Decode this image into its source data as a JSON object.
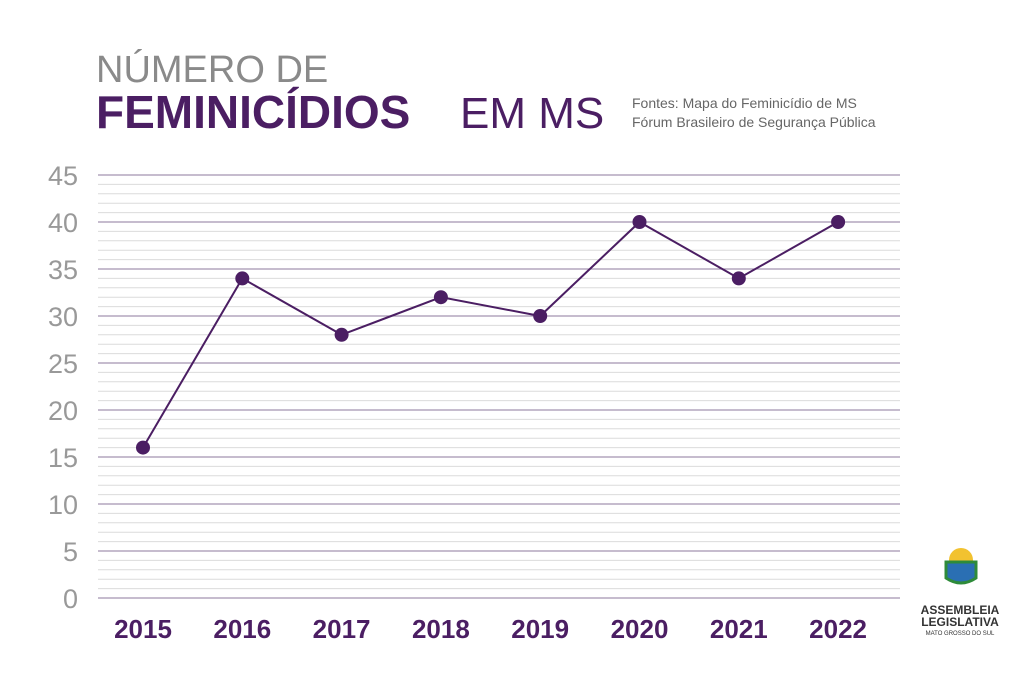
{
  "chart_data": {
    "type": "line",
    "title_line1": "NÚMERO DE",
    "title_bold": "FEMINICÍDIOS",
    "title_rest": "EM MS",
    "sources": [
      "Fontes: Mapa do Feminicídio de MS",
      "Fórum Brasileiro de Segurança Pública"
    ],
    "categories": [
      "2015",
      "2016",
      "2017",
      "2018",
      "2019",
      "2020",
      "2021",
      "2022"
    ],
    "values": [
      16,
      34,
      28,
      32,
      30,
      40,
      34,
      40
    ],
    "color": "#4b1e63",
    "ylim": [
      0,
      45
    ],
    "yticks": [
      0,
      5,
      10,
      15,
      20,
      25,
      30,
      35,
      40,
      45
    ],
    "grid": true
  },
  "logo": {
    "line1": "ASSEMBLEIA",
    "line2": "LEGISLATIVA",
    "line3": "MATO GROSSO DO SUL"
  }
}
